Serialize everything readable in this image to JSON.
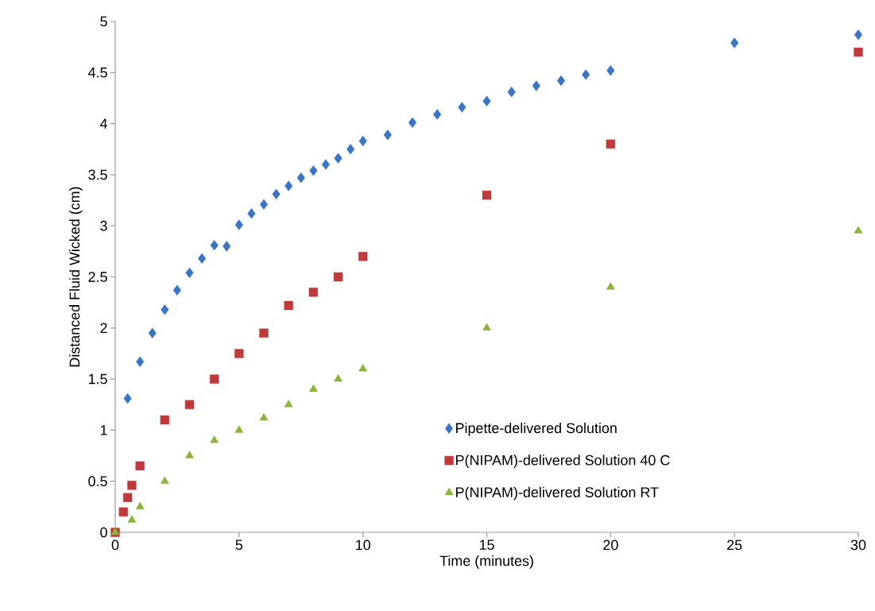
{
  "chart_data": {
    "type": "scatter",
    "xlabel": "Time (minutes)",
    "ylabel": "Distanced Fluid Wicked (cm)",
    "xlim": [
      0,
      30
    ],
    "xticks": [
      0,
      5,
      10,
      15,
      20,
      25,
      30
    ],
    "ylim": [
      0,
      5
    ],
    "yticks": [
      0,
      0.5,
      1,
      1.5,
      2,
      2.5,
      3,
      3.5,
      4,
      4.5,
      5
    ],
    "grid": false,
    "legend": "bottom right",
    "series": [
      {
        "name": "Pipette-delivered Solution",
        "color": "#3a75c4",
        "marker": "diamond",
        "x": [
          0.5,
          1,
          1.5,
          2,
          2.5,
          3,
          3.5,
          4,
          4.5,
          5,
          5.5,
          6,
          6.5,
          7,
          7.5,
          8,
          8.5,
          9,
          9.5,
          10,
          11,
          12,
          13,
          14,
          15,
          16,
          17,
          18,
          19,
          20,
          25,
          30
        ],
        "values": [
          1.31,
          1.67,
          1.95,
          2.18,
          2.37,
          2.54,
          2.68,
          2.81,
          2.8,
          3.01,
          3.12,
          3.21,
          3.31,
          3.39,
          3.47,
          3.54,
          3.6,
          3.66,
          3.75,
          3.83,
          3.89,
          4.01,
          4.09,
          4.16,
          4.22,
          4.31,
          4.37,
          4.42,
          4.48,
          4.52,
          4.79,
          4.87
        ]
      },
      {
        "name": "P(NIPAM)-delivered Solution 40   C",
        "color": "#c0393b",
        "marker": "square",
        "x": [
          0,
          0.33,
          0.5,
          0.67,
          1,
          2,
          3,
          4,
          5,
          6,
          7,
          8,
          9,
          10,
          15,
          20,
          30
        ],
        "values": [
          0,
          0.2,
          0.34,
          0.46,
          0.65,
          1.1,
          1.25,
          1.5,
          1.75,
          1.95,
          2.22,
          2.35,
          2.5,
          2.7,
          3.3,
          3.8,
          4.7
        ]
      },
      {
        "name": "P(NIPAM)-delivered Solution RT",
        "color": "#8db33a",
        "marker": "triangle",
        "x": [
          0,
          0.67,
          1,
          2,
          3,
          4,
          5,
          6,
          7,
          8,
          9,
          10,
          15,
          20,
          30
        ],
        "values": [
          0,
          0.12,
          0.25,
          0.5,
          0.75,
          0.9,
          1.0,
          1.12,
          1.25,
          1.4,
          1.5,
          1.6,
          2.0,
          2.4,
          2.95
        ]
      }
    ]
  }
}
